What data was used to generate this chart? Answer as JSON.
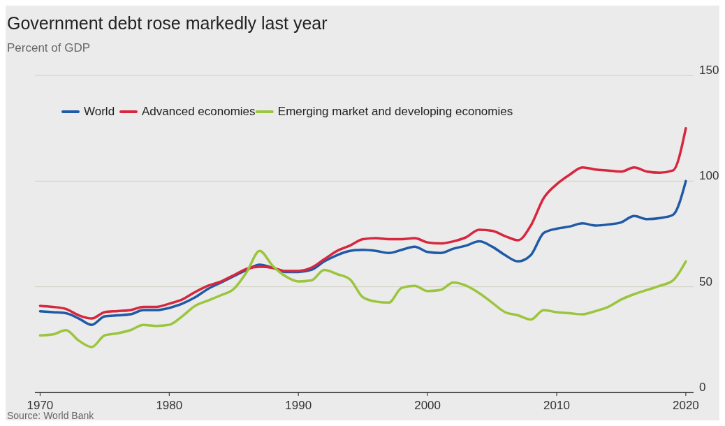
{
  "chart_data": {
    "type": "line",
    "title": "Government debt rose markedly last year",
    "subtitle": "Percent of GDP",
    "annotations": [
      "Source: World Bank"
    ],
    "x": [
      1970,
      1971,
      1972,
      1973,
      1974,
      1975,
      1976,
      1977,
      1978,
      1979,
      1980,
      1981,
      1982,
      1983,
      1984,
      1985,
      1986,
      1987,
      1988,
      1989,
      1990,
      1991,
      1992,
      1993,
      1994,
      1995,
      1996,
      1997,
      1998,
      1999,
      2000,
      2001,
      2002,
      2003,
      2004,
      2005,
      2006,
      2007,
      2008,
      2009,
      2010,
      2011,
      2012,
      2013,
      2014,
      2015,
      2016,
      2017,
      2018,
      2019,
      2020
    ],
    "series": [
      {
        "name": "World",
        "color": "#1f5aa6",
        "values": [
          38.4,
          38,
          37.5,
          35,
          32,
          36,
          36.5,
          37,
          39,
          39,
          40,
          42,
          45,
          49,
          52,
          55,
          58,
          60.5,
          59,
          57,
          57,
          58,
          62,
          65,
          67,
          67.5,
          67,
          66,
          67.5,
          69,
          66.5,
          66,
          68,
          69.5,
          71.5,
          69,
          65,
          62,
          65,
          75.5,
          77.5,
          78.5,
          80,
          79,
          79.5,
          80.5,
          83.5,
          82,
          82.5,
          84,
          100
        ]
      },
      {
        "name": "Advanced economies",
        "color": "#d7263d",
        "values": [
          41,
          40.5,
          39.5,
          36.5,
          35,
          38,
          38.5,
          39,
          40.5,
          40.5,
          42,
          44,
          47.5,
          50.5,
          52.5,
          55.5,
          58.5,
          59.5,
          59,
          57.5,
          57.5,
          59,
          63,
          67,
          69.5,
          72.5,
          73,
          72.5,
          72.5,
          73,
          71,
          70.5,
          71.5,
          73.5,
          77,
          76.5,
          74,
          72,
          79,
          92,
          98.5,
          103,
          106.5,
          105.5,
          105,
          104.5,
          106.5,
          104.5,
          104,
          105,
          125
        ]
      },
      {
        "name": "Emerging market and developing economies",
        "color": "#9bc53d",
        "values": [
          27,
          27.5,
          29.5,
          24.5,
          21.5,
          27,
          28,
          29.5,
          32,
          31.5,
          32,
          36,
          41,
          43.5,
          46,
          49,
          57,
          67,
          60,
          55,
          52.5,
          53,
          58,
          56,
          53.5,
          45,
          43,
          42.5,
          49.5,
          50.5,
          48,
          48.5,
          52,
          50.5,
          47,
          42.5,
          38,
          36.5,
          34.5,
          39,
          38,
          37.5,
          37,
          38.5,
          40.5,
          44,
          46.5,
          48.5,
          50.5,
          53,
          62
        ]
      }
    ],
    "xlim": [
      1969.6,
      2020.6
    ],
    "xticks": [
      1970,
      1980,
      1990,
      2000,
      2010,
      2020
    ],
    "ylim": [
      0,
      150
    ],
    "yticks": [
      0,
      50,
      100,
      150
    ],
    "grid": "y",
    "legend": "top left",
    "marker": "none",
    "line_style": "solid"
  }
}
